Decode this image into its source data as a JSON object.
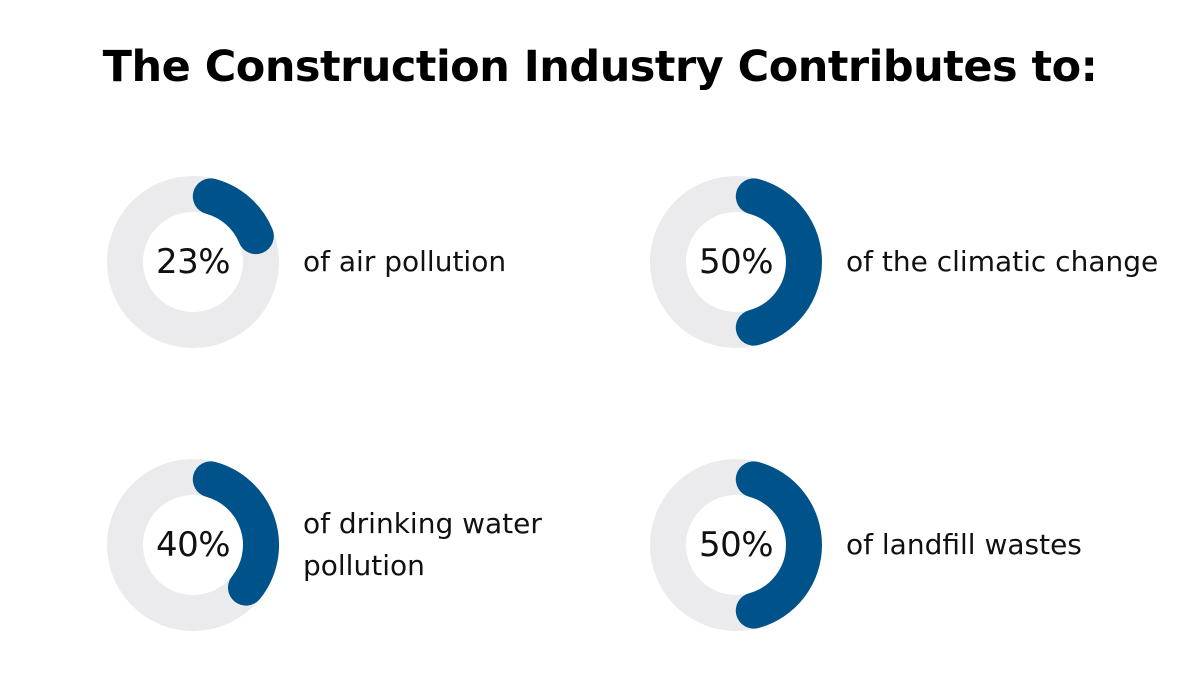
{
  "chart_data": {
    "type": "pie",
    "title": "The Construction Industry Contributes to:",
    "colors": {
      "fill": "#00538a",
      "track": "#ebebed"
    },
    "items": [
      {
        "value": 23,
        "label": "23%",
        "description": "of air pollution"
      },
      {
        "value": 50,
        "label": "50%",
        "description": "of the climatic change"
      },
      {
        "value": 40,
        "label": "40%",
        "description": "of drinking water pollution"
      },
      {
        "value": 50,
        "label": "50%",
        "description": "of landfill wastes"
      }
    ]
  }
}
